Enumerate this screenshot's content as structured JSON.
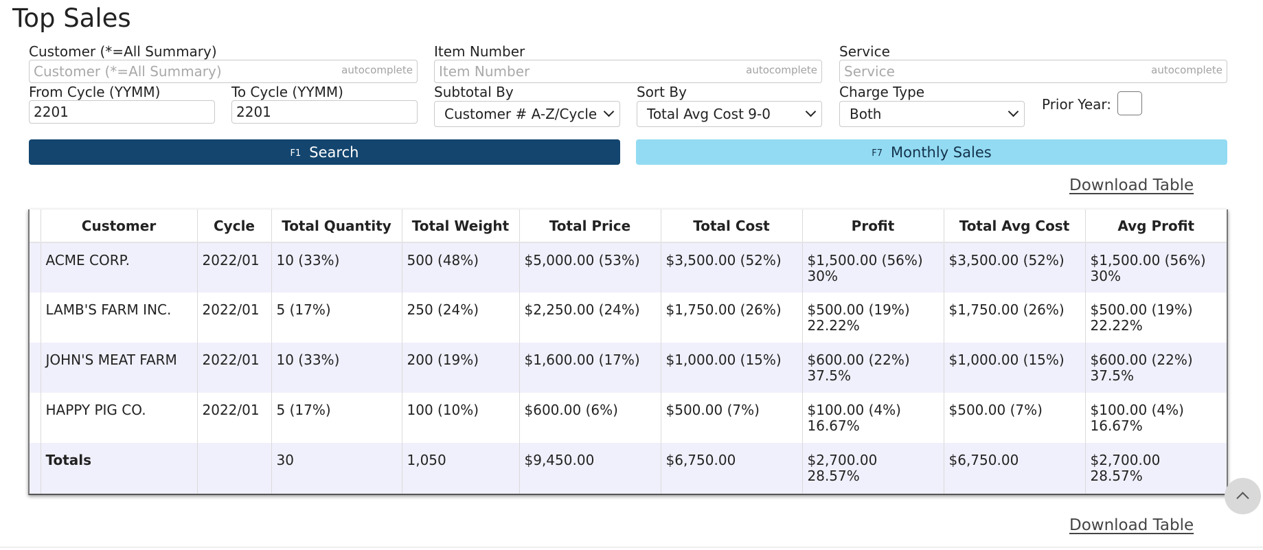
{
  "page": {
    "title": "Top Sales"
  },
  "filters": {
    "customer": {
      "label": "Customer (*=All Summary)",
      "placeholder": "Customer (*=All Summary)",
      "hint": "autocomplete"
    },
    "item_number": {
      "label": "Item Number",
      "placeholder": "Item Number",
      "hint": "autocomplete"
    },
    "service": {
      "label": "Service",
      "placeholder": "Service",
      "hint": "autocomplete"
    },
    "from_cycle": {
      "label": "From Cycle (YYMM)",
      "value": "2201"
    },
    "to_cycle": {
      "label": "To Cycle (YYMM)",
      "value": "2201"
    },
    "subtotal_by": {
      "label": "Subtotal By",
      "value": "Customer # A-Z/Cycle"
    },
    "sort_by": {
      "label": "Sort By",
      "value": "Total Avg Cost 9-0"
    },
    "charge_type": {
      "label": "Charge Type",
      "value": "Both"
    },
    "prior_year": {
      "label": "Prior Year:"
    }
  },
  "buttons": {
    "search": {
      "key": "F1",
      "label": "Search",
      "color": "#13456e"
    },
    "monthly": {
      "key": "F7",
      "label": "Monthly Sales",
      "color": "#93dbf2"
    }
  },
  "links": {
    "download_top": "Download Table",
    "download_bottom": "Download Table"
  },
  "table": {
    "headers": [
      "Customer",
      "Cycle",
      "Total Quantity",
      "Total Weight",
      "Total Price",
      "Total Cost",
      "Profit",
      "Total Avg Cost",
      "Avg Profit"
    ],
    "rows": [
      {
        "customer": "ACME CORP.",
        "cycle": "2022/01",
        "qty": "10 (33%)",
        "weight": "500 (48%)",
        "price": "$5,000.00 (53%)",
        "cost": "$3,500.00 (52%)",
        "profit": "$1,500.00 (56%)",
        "profit_pct": "30%",
        "avg_cost": "$3,500.00 (52%)",
        "avg_profit": "$1,500.00 (56%)",
        "avg_profit_pct": "30%"
      },
      {
        "customer": "LAMB'S FARM INC.",
        "cycle": "2022/01",
        "qty": "5 (17%)",
        "weight": "250 (24%)",
        "price": "$2,250.00 (24%)",
        "cost": "$1,750.00 (26%)",
        "profit": "$500.00 (19%)",
        "profit_pct": "22.22%",
        "avg_cost": "$1,750.00 (26%)",
        "avg_profit": "$500.00 (19%)",
        "avg_profit_pct": "22.22%"
      },
      {
        "customer": "JOHN'S MEAT FARM",
        "cycle": "2022/01",
        "qty": "10 (33%)",
        "weight": "200 (19%)",
        "price": "$1,600.00 (17%)",
        "cost": "$1,000.00 (15%)",
        "profit": "$600.00 (22%)",
        "profit_pct": "37.5%",
        "avg_cost": "$1,000.00 (15%)",
        "avg_profit": "$600.00 (22%)",
        "avg_profit_pct": "37.5%"
      },
      {
        "customer": "HAPPY PIG CO.",
        "cycle": "2022/01",
        "qty": "5 (17%)",
        "weight": "100 (10%)",
        "price": "$600.00 (6%)",
        "cost": "$500.00 (7%)",
        "profit": "$100.00 (4%)",
        "profit_pct": "16.67%",
        "avg_cost": "$500.00 (7%)",
        "avg_profit": "$100.00 (4%)",
        "avg_profit_pct": "16.67%"
      }
    ],
    "totals": {
      "label": "Totals",
      "cycle": "",
      "qty": "30",
      "weight": "1,050",
      "price": "$9,450.00",
      "cost": "$6,750.00",
      "profit": "$2,700.00",
      "profit_pct": "28.57%",
      "avg_cost": "$6,750.00",
      "avg_profit": "$2,700.00",
      "avg_profit_pct": "28.57%"
    }
  },
  "icons": {
    "scroll_top": "chevron-up-icon",
    "select_arrow": "chevron-down-icon"
  }
}
